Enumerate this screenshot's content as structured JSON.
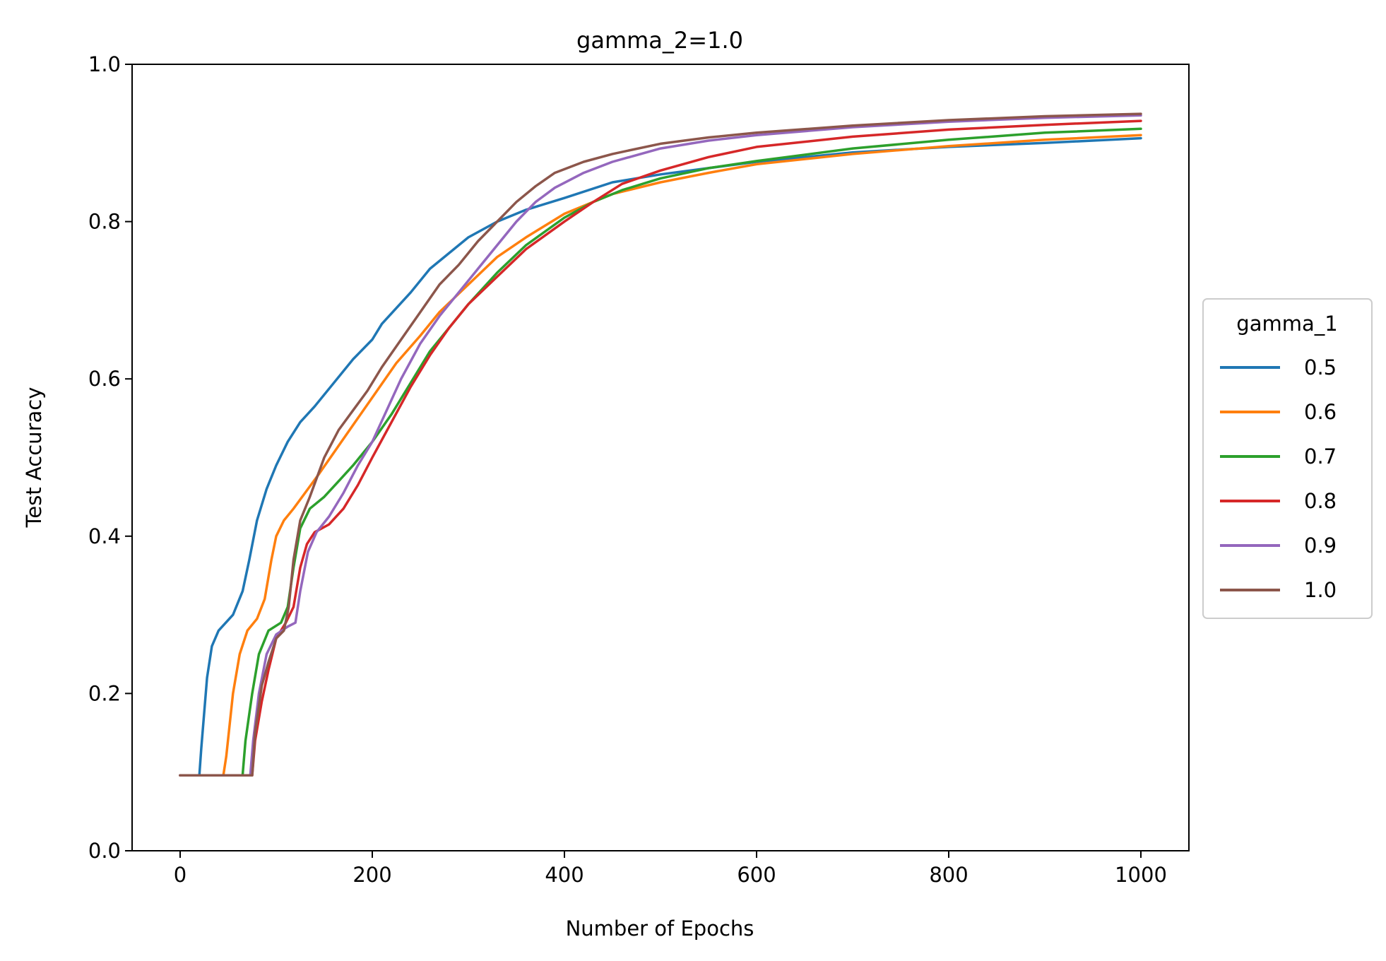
{
  "chart_data": {
    "type": "line",
    "title": "gamma_2=1.0",
    "xlabel": "Number of Epochs",
    "ylabel": "Test Accuracy",
    "xlim": [
      -50,
      1050
    ],
    "ylim": [
      0.0,
      1.0
    ],
    "x_ticks": [
      0,
      200,
      400,
      600,
      800,
      1000
    ],
    "x_tick_labels": [
      "0",
      "200",
      "400",
      "600",
      "800",
      "1000"
    ],
    "y_ticks": [
      0.0,
      0.2,
      0.4,
      0.6,
      0.8,
      1.0
    ],
    "y_tick_labels": [
      "0.0",
      "0.2",
      "0.4",
      "0.6",
      "0.8",
      "1.0"
    ],
    "grid": false,
    "legend": {
      "title": "gamma_1",
      "placement": "center-right, outside axes"
    },
    "series": [
      {
        "name": "0.5",
        "color": "#1f77b4",
        "points": [
          [
            0,
            0.096
          ],
          [
            20,
            0.096
          ],
          [
            22,
            0.13
          ],
          [
            28,
            0.22
          ],
          [
            33,
            0.26
          ],
          [
            40,
            0.28
          ],
          [
            55,
            0.3
          ],
          [
            65,
            0.33
          ],
          [
            72,
            0.37
          ],
          [
            80,
            0.42
          ],
          [
            90,
            0.46
          ],
          [
            100,
            0.49
          ],
          [
            112,
            0.52
          ],
          [
            125,
            0.545
          ],
          [
            140,
            0.565
          ],
          [
            160,
            0.595
          ],
          [
            180,
            0.625
          ],
          [
            200,
            0.65
          ],
          [
            210,
            0.67
          ],
          [
            240,
            0.71
          ],
          [
            260,
            0.74
          ],
          [
            280,
            0.76
          ],
          [
            300,
            0.78
          ],
          [
            330,
            0.8
          ],
          [
            360,
            0.815
          ],
          [
            400,
            0.83
          ],
          [
            450,
            0.85
          ],
          [
            500,
            0.86
          ],
          [
            600,
            0.876
          ],
          [
            700,
            0.888
          ],
          [
            800,
            0.895
          ],
          [
            900,
            0.9
          ],
          [
            1000,
            0.906
          ]
        ]
      },
      {
        "name": "0.6",
        "color": "#ff7f0e",
        "points": [
          [
            0,
            0.096
          ],
          [
            45,
            0.096
          ],
          [
            48,
            0.12
          ],
          [
            55,
            0.2
          ],
          [
            62,
            0.25
          ],
          [
            70,
            0.28
          ],
          [
            80,
            0.295
          ],
          [
            88,
            0.32
          ],
          [
            95,
            0.37
          ],
          [
            100,
            0.4
          ],
          [
            108,
            0.42
          ],
          [
            118,
            0.435
          ],
          [
            130,
            0.455
          ],
          [
            145,
            0.48
          ],
          [
            165,
            0.515
          ],
          [
            185,
            0.55
          ],
          [
            205,
            0.585
          ],
          [
            225,
            0.62
          ],
          [
            250,
            0.655
          ],
          [
            270,
            0.685
          ],
          [
            300,
            0.72
          ],
          [
            330,
            0.755
          ],
          [
            360,
            0.78
          ],
          [
            400,
            0.81
          ],
          [
            450,
            0.835
          ],
          [
            500,
            0.85
          ],
          [
            550,
            0.862
          ],
          [
            600,
            0.873
          ],
          [
            700,
            0.886
          ],
          [
            800,
            0.896
          ],
          [
            900,
            0.904
          ],
          [
            1000,
            0.91
          ]
        ]
      },
      {
        "name": "0.7",
        "color": "#2ca02c",
        "points": [
          [
            0,
            0.096
          ],
          [
            65,
            0.096
          ],
          [
            68,
            0.14
          ],
          [
            75,
            0.2
          ],
          [
            82,
            0.25
          ],
          [
            92,
            0.28
          ],
          [
            105,
            0.29
          ],
          [
            112,
            0.31
          ],
          [
            118,
            0.36
          ],
          [
            125,
            0.41
          ],
          [
            135,
            0.435
          ],
          [
            150,
            0.45
          ],
          [
            165,
            0.47
          ],
          [
            180,
            0.49
          ],
          [
            200,
            0.52
          ],
          [
            220,
            0.555
          ],
          [
            240,
            0.595
          ],
          [
            260,
            0.635
          ],
          [
            280,
            0.665
          ],
          [
            300,
            0.695
          ],
          [
            330,
            0.735
          ],
          [
            360,
            0.77
          ],
          [
            400,
            0.805
          ],
          [
            430,
            0.825
          ],
          [
            460,
            0.84
          ],
          [
            500,
            0.855
          ],
          [
            550,
            0.868
          ],
          [
            600,
            0.877
          ],
          [
            700,
            0.893
          ],
          [
            800,
            0.904
          ],
          [
            900,
            0.913
          ],
          [
            1000,
            0.918
          ]
        ]
      },
      {
        "name": "0.8",
        "color": "#d62728",
        "points": [
          [
            0,
            0.096
          ],
          [
            75,
            0.096
          ],
          [
            78,
            0.14
          ],
          [
            85,
            0.19
          ],
          [
            92,
            0.23
          ],
          [
            100,
            0.27
          ],
          [
            110,
            0.29
          ],
          [
            118,
            0.31
          ],
          [
            125,
            0.36
          ],
          [
            132,
            0.39
          ],
          [
            140,
            0.405
          ],
          [
            155,
            0.415
          ],
          [
            170,
            0.435
          ],
          [
            185,
            0.465
          ],
          [
            200,
            0.5
          ],
          [
            220,
            0.545
          ],
          [
            240,
            0.59
          ],
          [
            260,
            0.63
          ],
          [
            280,
            0.665
          ],
          [
            300,
            0.695
          ],
          [
            330,
            0.73
          ],
          [
            360,
            0.765
          ],
          [
            400,
            0.8
          ],
          [
            430,
            0.825
          ],
          [
            460,
            0.848
          ],
          [
            500,
            0.865
          ],
          [
            550,
            0.882
          ],
          [
            600,
            0.895
          ],
          [
            700,
            0.908
          ],
          [
            800,
            0.917
          ],
          [
            900,
            0.923
          ],
          [
            1000,
            0.928
          ]
        ]
      },
      {
        "name": "0.9",
        "color": "#9467bd",
        "points": [
          [
            0,
            0.096
          ],
          [
            73,
            0.096
          ],
          [
            76,
            0.14
          ],
          [
            82,
            0.2
          ],
          [
            90,
            0.25
          ],
          [
            100,
            0.275
          ],
          [
            112,
            0.285
          ],
          [
            120,
            0.29
          ],
          [
            125,
            0.33
          ],
          [
            133,
            0.38
          ],
          [
            142,
            0.405
          ],
          [
            155,
            0.425
          ],
          [
            170,
            0.455
          ],
          [
            185,
            0.49
          ],
          [
            200,
            0.52
          ],
          [
            215,
            0.56
          ],
          [
            230,
            0.6
          ],
          [
            250,
            0.645
          ],
          [
            270,
            0.68
          ],
          [
            290,
            0.71
          ],
          [
            310,
            0.74
          ],
          [
            330,
            0.77
          ],
          [
            350,
            0.8
          ],
          [
            370,
            0.825
          ],
          [
            390,
            0.843
          ],
          [
            420,
            0.862
          ],
          [
            450,
            0.876
          ],
          [
            500,
            0.893
          ],
          [
            550,
            0.903
          ],
          [
            600,
            0.91
          ],
          [
            700,
            0.92
          ],
          [
            800,
            0.927
          ],
          [
            900,
            0.932
          ],
          [
            1000,
            0.935
          ]
        ]
      },
      {
        "name": "1.0",
        "color": "#8c564b",
        "points": [
          [
            0,
            0.096
          ],
          [
            75,
            0.096
          ],
          [
            78,
            0.15
          ],
          [
            85,
            0.21
          ],
          [
            92,
            0.24
          ],
          [
            100,
            0.27
          ],
          [
            108,
            0.28
          ],
          [
            113,
            0.31
          ],
          [
            118,
            0.37
          ],
          [
            125,
            0.42
          ],
          [
            135,
            0.45
          ],
          [
            150,
            0.5
          ],
          [
            165,
            0.535
          ],
          [
            180,
            0.56
          ],
          [
            195,
            0.585
          ],
          [
            210,
            0.615
          ],
          [
            230,
            0.65
          ],
          [
            250,
            0.685
          ],
          [
            270,
            0.72
          ],
          [
            290,
            0.745
          ],
          [
            310,
            0.775
          ],
          [
            330,
            0.8
          ],
          [
            350,
            0.825
          ],
          [
            370,
            0.845
          ],
          [
            390,
            0.862
          ],
          [
            420,
            0.876
          ],
          [
            450,
            0.886
          ],
          [
            500,
            0.899
          ],
          [
            550,
            0.907
          ],
          [
            600,
            0.913
          ],
          [
            700,
            0.922
          ],
          [
            800,
            0.929
          ],
          [
            900,
            0.934
          ],
          [
            1000,
            0.937
          ]
        ]
      }
    ]
  }
}
